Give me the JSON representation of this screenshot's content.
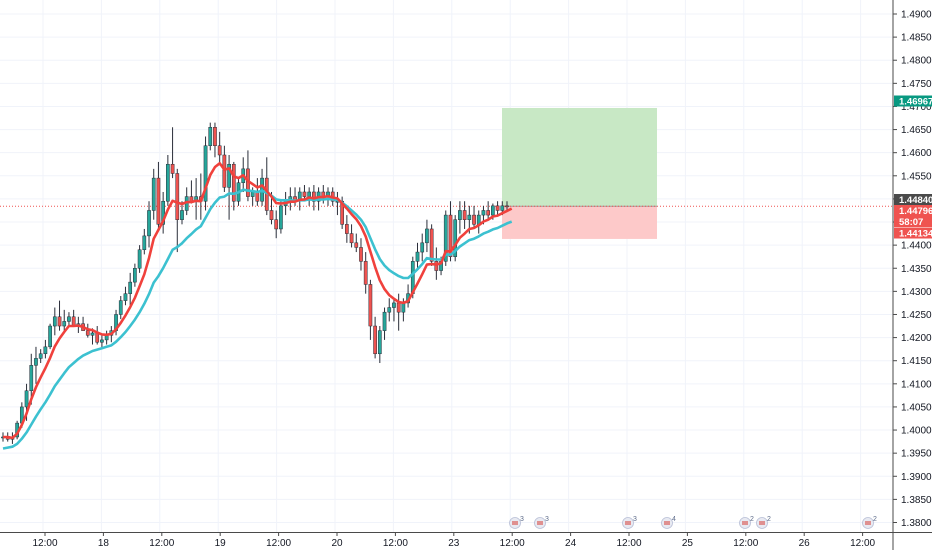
{
  "chart_data": {
    "type": "candlestick",
    "colors": {
      "up": "#26a69a",
      "down": "#ef5350",
      "ma_fast": "#f0413c",
      "ma_slow": "#3cc1d0",
      "take_profit_zone": "#c8e8c5",
      "stop_loss_zone": "#fdc9c9",
      "current_price_line": "#ef5350",
      "grid": "#f0f3fa"
    },
    "y_axis": {
      "min": 1.377,
      "max": 1.49,
      "tick_labels": [
        "1.49000",
        "1.48500",
        "1.48000",
        "1.47500",
        "1.47000",
        "1.46500",
        "1.46000",
        "1.45500",
        "1.45000",
        "1.44500",
        "1.44000",
        "1.43500",
        "1.43000",
        "1.42500",
        "1.42000",
        "1.41500",
        "1.41000",
        "1.40500",
        "1.40000",
        "1.39500",
        "1.39000",
        "1.38500",
        "1.38000"
      ],
      "tick_values": [
        1.49,
        1.485,
        1.48,
        1.475,
        1.47,
        1.465,
        1.46,
        1.455,
        1.45,
        1.445,
        1.44,
        1.435,
        1.43,
        1.425,
        1.42,
        1.415,
        1.41,
        1.405,
        1.4,
        1.395,
        1.39,
        1.385,
        1.38
      ]
    },
    "x_axis": {
      "tick_labels": [
        "12:00",
        "18",
        "12:00",
        "19",
        "12:00",
        "20",
        "12:00",
        "23",
        "12:00",
        "24",
        "12:00",
        "25",
        "12:00",
        "26",
        "12:00"
      ],
      "tick_index": [
        2,
        6,
        10,
        14,
        18,
        22,
        26,
        30,
        34,
        38,
        42,
        46,
        50,
        54,
        58
      ]
    },
    "price_tags": [
      {
        "label": "1.46967",
        "value": 1.46967,
        "color": "#089981"
      },
      {
        "label": "1.44840",
        "value": 1.4484,
        "color": "#4a4a4a"
      },
      {
        "label": "1.44796",
        "value": 1.44796,
        "color": "#ef5350"
      },
      {
        "label": "58:07",
        "value": 1.4467,
        "color": "#ef5350"
      },
      {
        "label": "1.44134",
        "value": 1.44134,
        "color": "#ef5350"
      }
    ],
    "current_price": 1.4484,
    "position": {
      "entry": 1.4484,
      "take_profit": 1.46967,
      "stop_loss": 1.44134,
      "start_index": 34.0,
      "end_index": 44.2
    },
    "candles_ohlc": [
      [
        1.3985,
        1.3995,
        1.3975,
        1.3985
      ],
      [
        1.3985,
        1.3995,
        1.3975,
        1.398
      ],
      [
        1.398,
        1.3995,
        1.397,
        1.3985
      ],
      [
        1.3985,
        1.402,
        1.398,
        1.4015
      ],
      [
        1.4015,
        1.406,
        1.4005,
        1.405
      ],
      [
        1.405,
        1.41,
        1.402,
        1.4085
      ],
      [
        1.4085,
        1.4165,
        1.4055,
        1.414
      ],
      [
        1.414,
        1.418,
        1.41,
        1.4155
      ],
      [
        1.4155,
        1.4175,
        1.4145,
        1.4165
      ],
      [
        1.4165,
        1.4195,
        1.4155,
        1.418
      ],
      [
        1.418,
        1.423,
        1.4175,
        1.4225
      ],
      [
        1.4225,
        1.4265,
        1.4205,
        1.4245
      ],
      [
        1.4245,
        1.428,
        1.4215,
        1.4225
      ],
      [
        1.4225,
        1.426,
        1.4215,
        1.4235
      ],
      [
        1.4235,
        1.4255,
        1.4225,
        1.4245
      ],
      [
        1.4245,
        1.426,
        1.4235,
        1.4225
      ],
      [
        1.4225,
        1.4245,
        1.421,
        1.423
      ],
      [
        1.423,
        1.4245,
        1.4215,
        1.4215
      ],
      [
        1.4215,
        1.423,
        1.42,
        1.4205
      ],
      [
        1.4205,
        1.422,
        1.4185,
        1.421
      ],
      [
        1.421,
        1.4225,
        1.4185,
        1.419
      ],
      [
        1.419,
        1.4205,
        1.4175,
        1.4195
      ],
      [
        1.4195,
        1.4215,
        1.4185,
        1.4205
      ],
      [
        1.4205,
        1.4225,
        1.419,
        1.4215
      ],
      [
        1.4215,
        1.426,
        1.4205,
        1.425
      ],
      [
        1.425,
        1.429,
        1.424,
        1.428
      ],
      [
        1.428,
        1.431,
        1.427,
        1.4295
      ],
      [
        1.4295,
        1.434,
        1.427,
        1.432
      ],
      [
        1.432,
        1.436,
        1.431,
        1.435
      ],
      [
        1.435,
        1.44,
        1.434,
        1.439
      ],
      [
        1.439,
        1.4435,
        1.438,
        1.442
      ],
      [
        1.442,
        1.4495,
        1.4395,
        1.4475
      ],
      [
        1.4475,
        1.4565,
        1.4455,
        1.4545
      ],
      [
        1.4545,
        1.458,
        1.4435,
        1.4445
      ],
      [
        1.4445,
        1.4515,
        1.4425,
        1.4495
      ],
      [
        1.4495,
        1.4595,
        1.4485,
        1.4575
      ],
      [
        1.4575,
        1.4655,
        1.4545,
        1.4555
      ],
      [
        1.4555,
        1.4565,
        1.4385,
        1.4455
      ],
      [
        1.4455,
        1.4495,
        1.4445,
        1.4475
      ],
      [
        1.4475,
        1.4525,
        1.4465,
        1.4505
      ],
      [
        1.4505,
        1.454,
        1.449,
        1.4495
      ],
      [
        1.4495,
        1.4545,
        1.4455,
        1.4505
      ],
      [
        1.4505,
        1.4555,
        1.4455,
        1.4495
      ],
      [
        1.4495,
        1.4635,
        1.4475,
        1.4615
      ],
      [
        1.4615,
        1.4665,
        1.4605,
        1.4655
      ],
      [
        1.4655,
        1.4665,
        1.459,
        1.4615
      ],
      [
        1.4615,
        1.4645,
        1.4575,
        1.4595
      ],
      [
        1.4595,
        1.4615,
        1.4515,
        1.4525
      ],
      [
        1.4525,
        1.4595,
        1.4455,
        1.4575
      ],
      [
        1.4575,
        1.458,
        1.4475,
        1.4495
      ],
      [
        1.4495,
        1.4545,
        1.4485,
        1.4535
      ],
      [
        1.4535,
        1.459,
        1.4515,
        1.4565
      ],
      [
        1.4565,
        1.4605,
        1.4495,
        1.4505
      ],
      [
        1.4505,
        1.4525,
        1.4485,
        1.4515
      ],
      [
        1.4515,
        1.4545,
        1.4485,
        1.4495
      ],
      [
        1.4495,
        1.4565,
        1.4485,
        1.4545
      ],
      [
        1.4545,
        1.459,
        1.4465,
        1.4475
      ],
      [
        1.4475,
        1.4515,
        1.4445,
        1.4455
      ],
      [
        1.4455,
        1.4475,
        1.4415,
        1.4435
      ],
      [
        1.4435,
        1.4495,
        1.4425,
        1.4485
      ],
      [
        1.4485,
        1.4515,
        1.4465,
        1.4495
      ],
      [
        1.4495,
        1.4525,
        1.4475,
        1.4505
      ],
      [
        1.4505,
        1.4525,
        1.4485,
        1.4495
      ],
      [
        1.4495,
        1.4525,
        1.4475,
        1.4515
      ],
      [
        1.4515,
        1.453,
        1.4495,
        1.4505
      ],
      [
        1.4505,
        1.4525,
        1.4485,
        1.4515
      ],
      [
        1.4515,
        1.453,
        1.4475,
        1.4495
      ],
      [
        1.4495,
        1.4525,
        1.4475,
        1.4515
      ],
      [
        1.4515,
        1.453,
        1.449,
        1.4505
      ],
      [
        1.4505,
        1.4525,
        1.4485,
        1.4515
      ],
      [
        1.4515,
        1.4525,
        1.4485,
        1.4495
      ],
      [
        1.4495,
        1.4515,
        1.4465,
        1.4495
      ],
      [
        1.4495,
        1.4505,
        1.4435,
        1.4445
      ],
      [
        1.4445,
        1.4465,
        1.4405,
        1.4425
      ],
      [
        1.4425,
        1.4445,
        1.4395,
        1.4405
      ],
      [
        1.4405,
        1.4425,
        1.4385,
        1.4395
      ],
      [
        1.4395,
        1.4415,
        1.4345,
        1.4365
      ],
      [
        1.4365,
        1.4385,
        1.4295,
        1.4315
      ],
      [
        1.4315,
        1.4325,
        1.4195,
        1.4225
      ],
      [
        1.4225,
        1.4245,
        1.4155,
        1.4165
      ],
      [
        1.4165,
        1.4225,
        1.4145,
        1.4215
      ],
      [
        1.4215,
        1.4265,
        1.4195,
        1.4255
      ],
      [
        1.4255,
        1.4285,
        1.4235,
        1.4265
      ],
      [
        1.4265,
        1.4285,
        1.4235,
        1.4275
      ],
      [
        1.4275,
        1.4295,
        1.4215,
        1.4255
      ],
      [
        1.4255,
        1.4285,
        1.4235,
        1.4275
      ],
      [
        1.4275,
        1.4315,
        1.4265,
        1.4295
      ],
      [
        1.4295,
        1.4375,
        1.4285,
        1.4365
      ],
      [
        1.4365,
        1.4405,
        1.4345,
        1.4385
      ],
      [
        1.4385,
        1.4425,
        1.4365,
        1.4405
      ],
      [
        1.4405,
        1.4455,
        1.4385,
        1.4435
      ],
      [
        1.4435,
        1.4445,
        1.4355,
        1.4365
      ],
      [
        1.4365,
        1.4395,
        1.4325,
        1.4345
      ],
      [
        1.4345,
        1.4375,
        1.4335,
        1.4365
      ],
      [
        1.4365,
        1.4475,
        1.4355,
        1.4465
      ],
      [
        1.4465,
        1.4495,
        1.4365,
        1.4375
      ],
      [
        1.4375,
        1.4465,
        1.4365,
        1.4455
      ],
      [
        1.4455,
        1.4495,
        1.4425,
        1.4475
      ],
      [
        1.4475,
        1.4495,
        1.4435,
        1.4455
      ],
      [
        1.4455,
        1.4485,
        1.4425,
        1.4465
      ],
      [
        1.4465,
        1.4485,
        1.4435,
        1.4445
      ],
      [
        1.4445,
        1.4475,
        1.4425,
        1.4465
      ],
      [
        1.4465,
        1.4485,
        1.4445,
        1.4475
      ],
      [
        1.4475,
        1.4495,
        1.4455,
        1.4465
      ],
      [
        1.4465,
        1.449,
        1.4455,
        1.4485
      ],
      [
        1.4485,
        1.4495,
        1.4465,
        1.4475
      ],
      [
        1.4475,
        1.4495,
        1.4465,
        1.4485
      ],
      [
        1.4485,
        1.4495,
        1.4475,
        1.4484
      ]
    ],
    "ma_fast": [
      1.3985,
      1.3985,
      1.3983,
      1.3992,
      1.4011,
      1.4036,
      1.4067,
      1.4093,
      1.4114,
      1.4134,
      1.4156,
      1.4181,
      1.4198,
      1.4212,
      1.4225,
      1.4225,
      1.4226,
      1.4223,
      1.4218,
      1.4216,
      1.4211,
      1.4207,
      1.4206,
      1.4208,
      1.4218,
      1.4232,
      1.4248,
      1.4266,
      1.4286,
      1.4311,
      1.4337,
      1.4372,
      1.4414,
      1.4433,
      1.4452,
      1.4477,
      1.4496,
      1.4492,
      1.4489,
      1.4493,
      1.4493,
      1.4496,
      1.4495,
      1.4523,
      1.4552,
      1.4569,
      1.4577,
      1.4563,
      1.4566,
      1.4549,
      1.4545,
      1.4551,
      1.4539,
      1.4532,
      1.4525,
      1.4529,
      1.4517,
      1.4505,
      1.4491,
      1.449,
      1.4491,
      1.4494,
      1.4494,
      1.4498,
      1.4499,
      1.4503,
      1.4501,
      1.4504,
      1.4504,
      1.4506,
      1.4503,
      1.4501,
      1.449,
      1.4479,
      1.4467,
      1.4456,
      1.4441,
      1.4419,
      1.4386,
      1.4353,
      1.4324,
      1.4305,
      1.4292,
      1.4284,
      1.4277,
      1.4275,
      1.4279,
      1.4298,
      1.4317,
      1.4337,
      1.4358,
      1.4359,
      1.4358,
      1.4361,
      1.4387,
      1.4386,
      1.44,
      1.4416,
      1.4425,
      1.4435,
      1.4437,
      1.4443,
      1.4451,
      1.4455,
      1.4462,
      1.4464,
      1.4469,
      1.4474,
      1.4479
    ],
    "ma_slow": [
      1.396,
      1.3962,
      1.3964,
      1.397,
      1.3981,
      1.3995,
      1.4012,
      1.4029,
      1.4045,
      1.406,
      1.4077,
      1.4095,
      1.4109,
      1.4123,
      1.4136,
      1.4145,
      1.4154,
      1.4161,
      1.4166,
      1.4171,
      1.4174,
      1.4177,
      1.418,
      1.4183,
      1.4191,
      1.4201,
      1.4212,
      1.4225,
      1.4239,
      1.4255,
      1.4273,
      1.4294,
      1.4319,
      1.4333,
      1.435,
      1.437,
      1.439,
      1.4396,
      1.4404,
      1.4415,
      1.4424,
      1.4434,
      1.4441,
      1.4459,
      1.4478,
      1.4492,
      1.4503,
      1.4505,
      1.4512,
      1.4511,
      1.4514,
      1.452,
      1.4518,
      1.4517,
      1.4515,
      1.4518,
      1.4513,
      1.4507,
      1.4499,
      1.4497,
      1.4497,
      1.4497,
      1.4496,
      1.4497,
      1.4497,
      1.4499,
      1.4498,
      1.4499,
      1.4499,
      1.45,
      1.4499,
      1.4498,
      1.4492,
      1.4484,
      1.4475,
      1.4466,
      1.4455,
      1.4439,
      1.4415,
      1.4391,
      1.437,
      1.4356,
      1.4346,
      1.4339,
      1.4333,
      1.4329,
      1.4329,
      1.4338,
      1.4348,
      1.4359,
      1.4372,
      1.437,
      1.4369,
      1.4369,
      1.438,
      1.4379,
      1.4387,
      1.4397,
      1.4404,
      1.4411,
      1.4414,
      1.4419,
      1.4425,
      1.4429,
      1.4434,
      1.4437,
      1.4442,
      1.4447,
      1.4451
    ],
    "event_markers": [
      {
        "label": "3",
        "index": 33.7
      },
      {
        "label": "3",
        "index": 35.8
      },
      {
        "label": "3",
        "index": 41.7
      },
      {
        "label": "4",
        "index": 45.0
      },
      {
        "label": "2",
        "index": 49.5
      },
      {
        "label": "2",
        "index": 51.5
      },
      {
        "label": "2",
        "index": 58.8
      }
    ]
  }
}
